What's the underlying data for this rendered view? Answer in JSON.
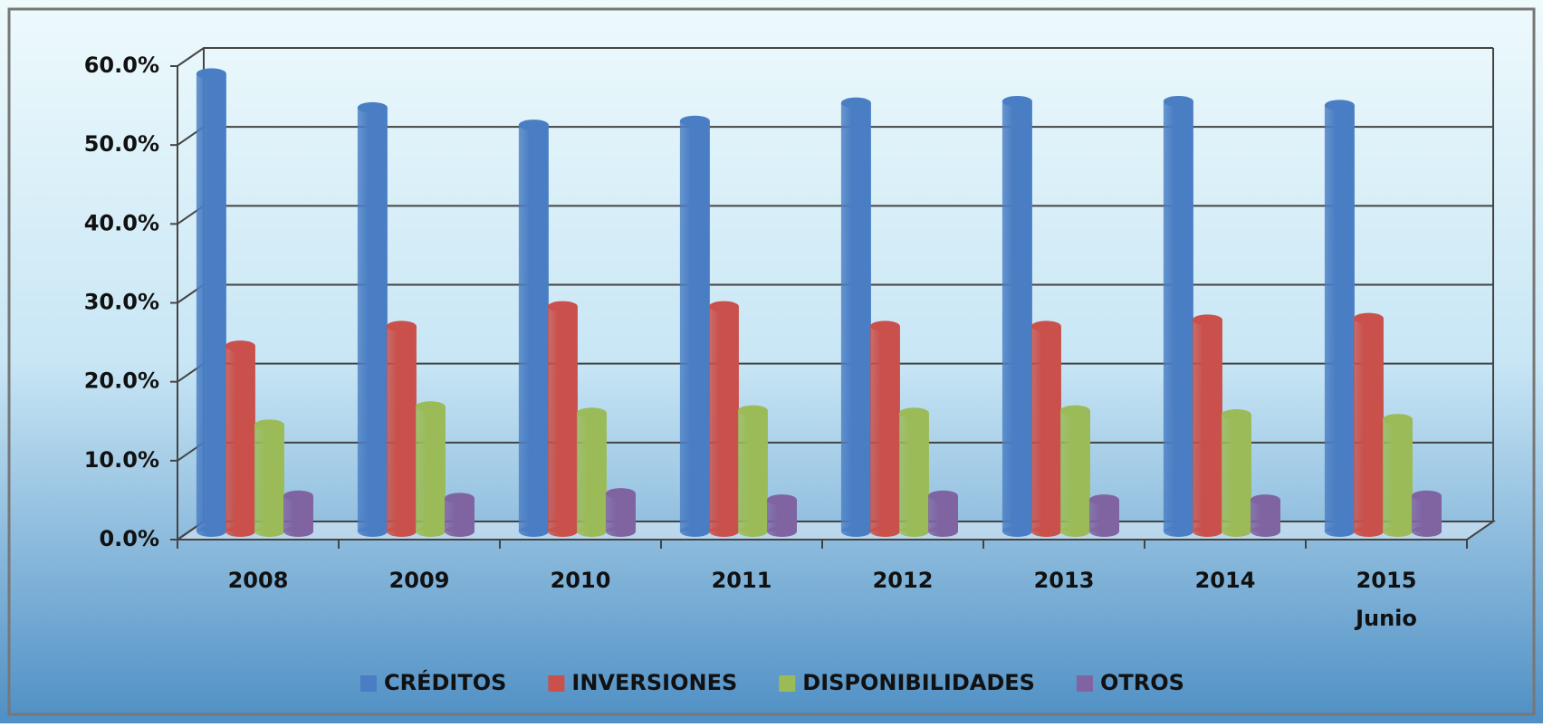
{
  "chart_data": {
    "type": "bar",
    "categories": [
      "2008",
      "2009",
      "2010",
      "2011",
      "2012",
      "2013",
      "2014",
      "2015 Junio"
    ],
    "series": [
      {
        "name": "CRÉDITOS",
        "color": "#4a7ec4",
        "values": [
          58,
          53.7,
          51.5,
          52,
          54.3,
          54.5,
          54.5,
          54
        ]
      },
      {
        "name": "INVERSIONES",
        "color": "#c9504b",
        "values": [
          23.5,
          26,
          28.5,
          28.5,
          26,
          26,
          26.8,
          27
        ]
      },
      {
        "name": "DISPONIBILIDADES",
        "color": "#9bbb59",
        "values": [
          13.5,
          15.8,
          15,
          15.3,
          15,
          15.3,
          14.8,
          14.2
        ]
      },
      {
        "name": "OTROS",
        "color": "#8064a2",
        "values": [
          4.5,
          4.2,
          4.8,
          4,
          4.5,
          4,
          4,
          4.5
        ]
      }
    ],
    "ylim": [
      0,
      60
    ],
    "yticks": [
      {
        "value": 0,
        "label": "0.0%"
      },
      {
        "value": 10,
        "label": "10.0%"
      },
      {
        "value": 20,
        "label": "20.0%"
      },
      {
        "value": 30,
        "label": "30.0%"
      },
      {
        "value": 40,
        "label": "40.0%"
      },
      {
        "value": 50,
        "label": "50.0%"
      },
      {
        "value": 60,
        "label": "60.0%"
      }
    ],
    "grid": true,
    "legend": "bottom"
  }
}
